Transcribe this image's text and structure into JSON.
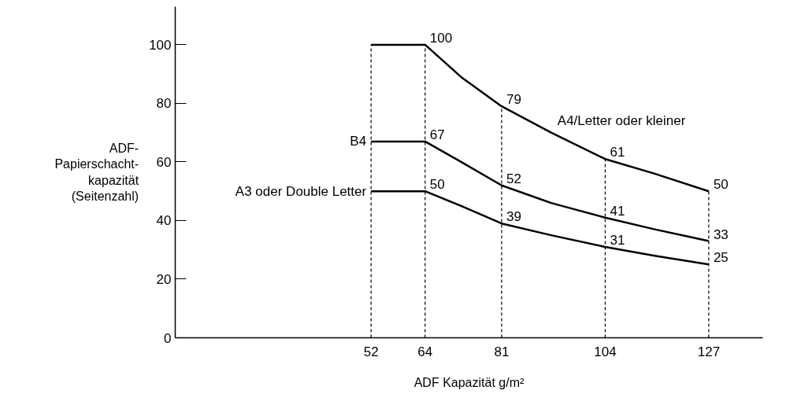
{
  "chart_data": {
    "type": "line",
    "xlabel": "ADF Kapazität g/m²",
    "ylabel": "ADF-\nPapierschacht-\nkapazität\n(Seitenzahl)",
    "xlim": [
      8.5,
      139
    ],
    "ylim": [
      0,
      113
    ],
    "xticks": [
      52,
      64,
      81,
      104,
      127
    ],
    "yticks": [
      0,
      20,
      40,
      60,
      80,
      100
    ],
    "grid": false,
    "marker": "none",
    "line_style": "solid",
    "series": [
      {
        "name": "A4/Letter oder kleiner",
        "color": "#000000",
        "x": [
          52,
          64,
          72,
          81,
          92,
          104,
          115,
          127
        ],
        "values": [
          100,
          100,
          89,
          79,
          70,
          61,
          56,
          50
        ],
        "value_labels": [
          null,
          "100",
          null,
          "79",
          null,
          "61",
          null,
          "50"
        ]
      },
      {
        "name": "B4",
        "color": "#000000",
        "x": [
          52,
          64,
          72,
          81,
          92,
          104,
          115,
          124,
          127
        ],
        "values": [
          67,
          67,
          60,
          52,
          46,
          41,
          37,
          34,
          33
        ],
        "value_labels": [
          null,
          "67",
          null,
          "52",
          null,
          "41",
          null,
          null,
          "33"
        ]
      },
      {
        "name": "A3 oder Double Letter",
        "color": "#000000",
        "x": [
          52,
          64,
          72,
          81,
          92,
          104,
          115,
          127
        ],
        "values": [
          50,
          50,
          45,
          39,
          35,
          31,
          28,
          25
        ],
        "value_labels": [
          null,
          "50",
          null,
          "39",
          null,
          "31",
          null,
          "25"
        ]
      }
    ],
    "ref_lines": [
      {
        "axis": "x",
        "value": 52,
        "line_style": "dashed",
        "color": "#000000"
      },
      {
        "axis": "x",
        "value": 64,
        "line_style": "dashed",
        "color": "#000000"
      },
      {
        "axis": "x",
        "value": 81,
        "line_style": "dashed",
        "color": "#000000"
      },
      {
        "axis": "x",
        "value": 104,
        "line_style": "dashed",
        "color": "#000000"
      },
      {
        "axis": "x",
        "value": 127,
        "line_style": "dashed",
        "color": "#000000"
      }
    ]
  }
}
